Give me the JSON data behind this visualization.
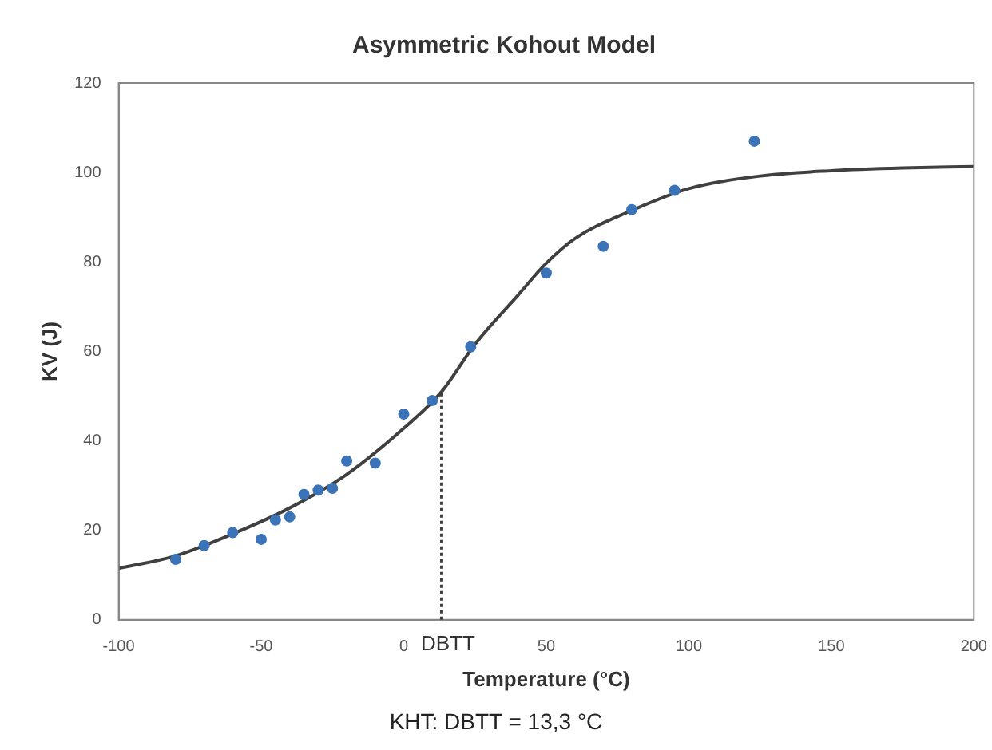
{
  "chart_data": {
    "type": "scatter",
    "title": "Asymmetric Kohout Model",
    "xlabel": "Temperature (°C)",
    "ylabel": "KV (J)",
    "xlim": [
      -100,
      200
    ],
    "xticks": [
      -100,
      -50,
      0,
      50,
      100,
      150,
      200
    ],
    "ylim": [
      0,
      120
    ],
    "yticks": [
      0,
      20,
      40,
      60,
      80,
      100,
      120
    ],
    "grid": false,
    "legend": false,
    "marker": "circle",
    "series": [
      {
        "color": "#3b73b9",
        "x": [
          -80,
          -70,
          -60,
          -50,
          -45,
          -40,
          -35,
          -30,
          -25,
          -20,
          -10,
          0,
          10,
          23.5,
          50,
          70,
          80,
          95,
          123
        ],
        "values": [
          13.5,
          16.6,
          19.5,
          18,
          22.3,
          23,
          28,
          29,
          29.4,
          35.5,
          35,
          46,
          49,
          61,
          77.5,
          83.5,
          91.7,
          96,
          107
        ]
      },
      {
        "type": "line",
        "color": "#404040",
        "marker": "none",
        "x": [
          -100,
          -80,
          -60,
          -40,
          -20,
          0,
          13.3,
          25,
          40,
          50,
          60,
          80,
          100,
          125,
          150,
          175,
          200
        ],
        "values": [
          11.5,
          14.3,
          19.2,
          25,
          32.5,
          42.8,
          51,
          61.6,
          72.5,
          79.7,
          85.2,
          91.5,
          96.4,
          99.2,
          100.4,
          101,
          101.3
        ]
      }
    ],
    "ref_lines": [
      {
        "axis": "x",
        "value": 13.3,
        "label": "DBTT",
        "line_style": "dotted",
        "color": "#404040"
      }
    ],
    "annotations": [
      "KHT: DBTT = 13,3 °C"
    ]
  }
}
